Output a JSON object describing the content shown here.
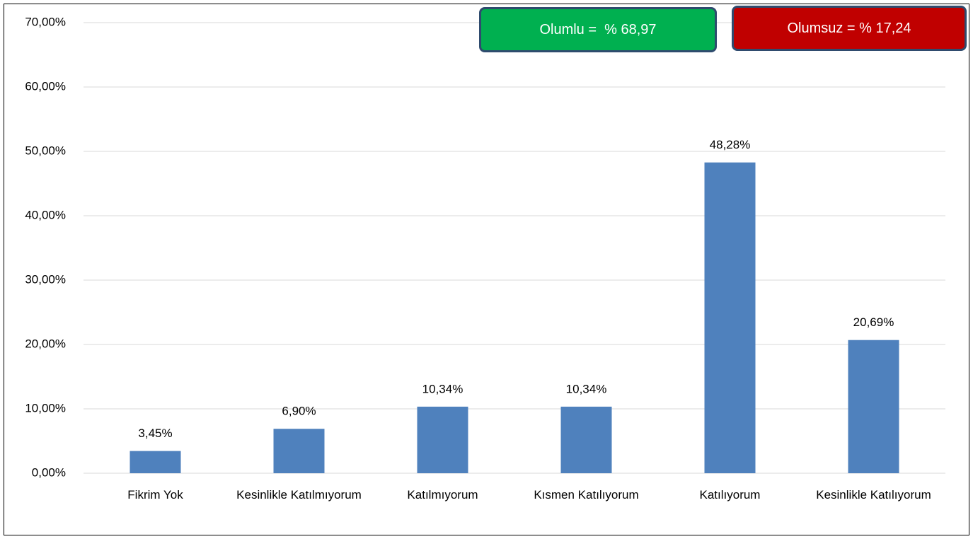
{
  "chart_data": {
    "type": "bar",
    "categories": [
      "Fikrim Yok",
      "Kesinlikle Katılmıyorum",
      "Katılmıyorum",
      "Kısmen Katılıyorum",
      "Katılıyorum",
      "Kesinlikle Katılıyorum"
    ],
    "values": [
      3.45,
      6.9,
      10.34,
      10.34,
      48.28,
      20.69
    ],
    "value_labels": [
      "3,45%",
      "6,90%",
      "10,34%",
      "10,34%",
      "48,28%",
      "20,69%"
    ],
    "color": "#4f81bd",
    "ylim": [
      0,
      70
    ],
    "yticks": [
      {
        "value": 0,
        "label": "0,00%"
      },
      {
        "value": 10,
        "label": "10,00%"
      },
      {
        "value": 20,
        "label": "20,00%"
      },
      {
        "value": 30,
        "label": "30,00%"
      },
      {
        "value": 40,
        "label": "40,00%"
      },
      {
        "value": 50,
        "label": "50,00%"
      },
      {
        "value": 60,
        "label": "60,00%"
      },
      {
        "value": 70,
        "label": "70,00%"
      }
    ],
    "grid": true,
    "annotations": [
      {
        "text": "Olumlu =  % 68,97",
        "color": "#00b050"
      },
      {
        "text": "Olumsuz = % 17,24",
        "color": "#c00000"
      }
    ]
  }
}
